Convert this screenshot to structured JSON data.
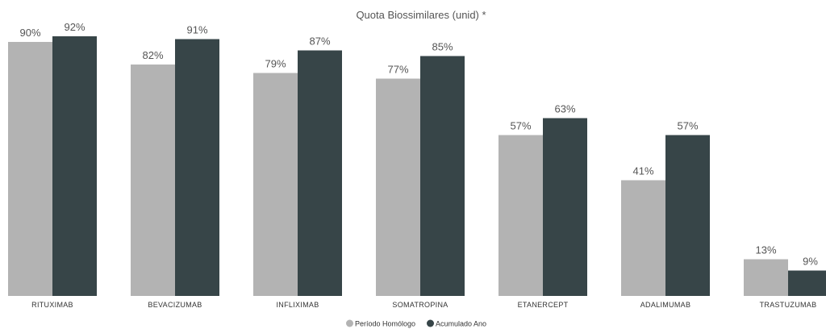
{
  "chart_data": {
    "type": "bar",
    "title": "Quota Biossimilares (unid) *",
    "categories": [
      "RITUXIMAB",
      "BEVACIZUMAB",
      "INFLIXIMAB",
      "SOMATROPINA",
      "ETANERCEPT",
      "ADALIMUMAB",
      "TRASTUZUMAB"
    ],
    "series": [
      {
        "name": "Período Homólogo",
        "color": "#b3b3b3",
        "values": [
          90,
          82,
          79,
          77,
          57,
          41,
          13
        ],
        "labels": [
          "90%",
          "82%",
          "79%",
          "77%",
          "57%",
          "41%",
          "13%"
        ]
      },
      {
        "name": "Acumulado Ano",
        "color": "#374548",
        "values": [
          92,
          91,
          87,
          85,
          63,
          57,
          9
        ],
        "labels": [
          "92%",
          "91%",
          "87%",
          "85%",
          "63%",
          "57%",
          "9%"
        ]
      }
    ],
    "unit": "%",
    "ylim": [
      0,
      100
    ],
    "grid": false,
    "legend": "bottom-center"
  }
}
